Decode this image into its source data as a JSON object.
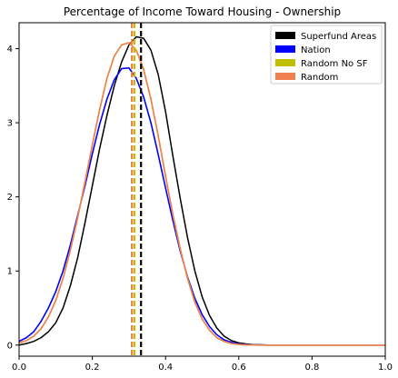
{
  "chart_data": {
    "type": "line",
    "title": "Percentage of Income Toward Housing - Ownership",
    "xlabel": "",
    "ylabel": "",
    "xlim": [
      0.0,
      1.0
    ],
    "ylim": [
      -0.15,
      4.35
    ],
    "xticks": [
      0.0,
      0.2,
      0.4,
      0.6,
      0.8,
      1.0
    ],
    "xtick_labels": [
      "0.0",
      "0.2",
      "0.4",
      "0.6",
      "0.8",
      "1.0"
    ],
    "yticks": [
      0,
      1,
      2,
      3,
      4
    ],
    "ytick_labels": [
      "0",
      "1",
      "2",
      "3",
      "4"
    ],
    "grid": false,
    "legend_position": "top-right",
    "series": [
      {
        "name": "Superfund Areas",
        "color": "#000000",
        "x": [
          0.0,
          0.02,
          0.04,
          0.06,
          0.08,
          0.1,
          0.12,
          0.14,
          0.16,
          0.18,
          0.2,
          0.22,
          0.24,
          0.26,
          0.28,
          0.3,
          0.32,
          0.34,
          0.36,
          0.38,
          0.4,
          0.42,
          0.44,
          0.46,
          0.48,
          0.5,
          0.52,
          0.54,
          0.56,
          0.58,
          0.6,
          0.62,
          0.64,
          0.66,
          0.68,
          0.7,
          0.75,
          0.8,
          0.85,
          0.9,
          0.95,
          1.0
        ],
        "y": [
          0.0,
          0.02,
          0.05,
          0.1,
          0.18,
          0.3,
          0.5,
          0.8,
          1.18,
          1.65,
          2.15,
          2.65,
          3.1,
          3.5,
          3.82,
          4.05,
          4.16,
          4.14,
          3.98,
          3.65,
          3.15,
          2.55,
          1.98,
          1.45,
          1.0,
          0.65,
          0.4,
          0.23,
          0.12,
          0.06,
          0.03,
          0.015,
          0.007,
          0.003,
          0.001,
          0.0,
          0.0,
          0.0,
          0.0,
          0.0,
          0.0,
          0.0
        ]
      },
      {
        "name": "Nation",
        "color": "#0000ff",
        "x": [
          0.0,
          0.02,
          0.04,
          0.06,
          0.08,
          0.1,
          0.12,
          0.14,
          0.16,
          0.18,
          0.2,
          0.22,
          0.24,
          0.26,
          0.28,
          0.3,
          0.32,
          0.34,
          0.36,
          0.38,
          0.4,
          0.42,
          0.44,
          0.46,
          0.48,
          0.5,
          0.52,
          0.54,
          0.56,
          0.58,
          0.6,
          0.62,
          0.64,
          0.66,
          0.68,
          0.7,
          0.75,
          0.8,
          0.85,
          0.9,
          0.95,
          1.0
        ],
        "y": [
          0.05,
          0.1,
          0.18,
          0.32,
          0.5,
          0.72,
          1.0,
          1.35,
          1.75,
          2.15,
          2.58,
          2.98,
          3.32,
          3.58,
          3.73,
          3.74,
          3.6,
          3.35,
          3.0,
          2.57,
          2.12,
          1.68,
          1.27,
          0.92,
          0.63,
          0.41,
          0.25,
          0.14,
          0.07,
          0.035,
          0.015,
          0.007,
          0.003,
          0.001,
          0.0,
          0.0,
          0.0,
          0.0,
          0.0,
          0.0,
          0.0,
          0.0
        ]
      },
      {
        "name": "Random No SF",
        "color": "#bfbf00",
        "x": [
          0.0,
          0.02,
          0.04,
          0.06,
          0.08,
          0.1,
          0.12,
          0.14,
          0.16,
          0.18,
          0.2,
          0.22,
          0.24,
          0.26,
          0.28,
          0.3,
          0.32,
          0.34,
          0.36,
          0.38,
          0.4,
          0.42,
          0.44,
          0.46,
          0.48,
          0.5,
          0.52,
          0.54,
          0.56,
          0.58,
          0.6,
          0.62,
          0.64,
          0.66,
          0.68,
          0.7,
          0.75,
          0.8,
          0.85,
          0.9,
          0.95,
          1.0
        ],
        "y": [
          0.03,
          0.06,
          0.12,
          0.22,
          0.38,
          0.6,
          0.9,
          1.28,
          1.72,
          2.2,
          2.7,
          3.18,
          3.6,
          3.9,
          4.05,
          4.08,
          3.98,
          3.72,
          3.32,
          2.82,
          2.28,
          1.76,
          1.3,
          0.9,
          0.58,
          0.35,
          0.2,
          0.1,
          0.05,
          0.02,
          0.008,
          0.003,
          0.001,
          0.0,
          0.0,
          0.0,
          0.0,
          0.0,
          0.0,
          0.0,
          0.0,
          0.0
        ]
      },
      {
        "name": "Random",
        "color": "#f08050",
        "x": [
          0.0,
          0.02,
          0.04,
          0.06,
          0.08,
          0.1,
          0.12,
          0.14,
          0.16,
          0.18,
          0.2,
          0.22,
          0.24,
          0.26,
          0.28,
          0.3,
          0.32,
          0.34,
          0.36,
          0.38,
          0.4,
          0.42,
          0.44,
          0.46,
          0.48,
          0.5,
          0.52,
          0.54,
          0.56,
          0.58,
          0.6,
          0.62,
          0.64,
          0.66,
          0.68,
          0.7,
          0.75,
          0.8,
          0.85,
          0.9,
          0.95,
          1.0
        ],
        "y": [
          0.03,
          0.06,
          0.12,
          0.22,
          0.38,
          0.6,
          0.9,
          1.28,
          1.72,
          2.2,
          2.7,
          3.18,
          3.6,
          3.9,
          4.05,
          4.08,
          3.98,
          3.72,
          3.32,
          2.82,
          2.28,
          1.76,
          1.3,
          0.9,
          0.58,
          0.35,
          0.2,
          0.1,
          0.05,
          0.02,
          0.008,
          0.003,
          0.001,
          0.0,
          0.0,
          0.0,
          0.0,
          0.0,
          0.0,
          0.0,
          0.0,
          0.0
        ]
      }
    ],
    "vlines": [
      {
        "x": 0.333,
        "color": "#000000",
        "style": "dashed"
      },
      {
        "x": 0.315,
        "color": "#bfbf00",
        "style": "dashed"
      },
      {
        "x": 0.308,
        "color": "#f08050",
        "style": "dashed"
      }
    ]
  }
}
